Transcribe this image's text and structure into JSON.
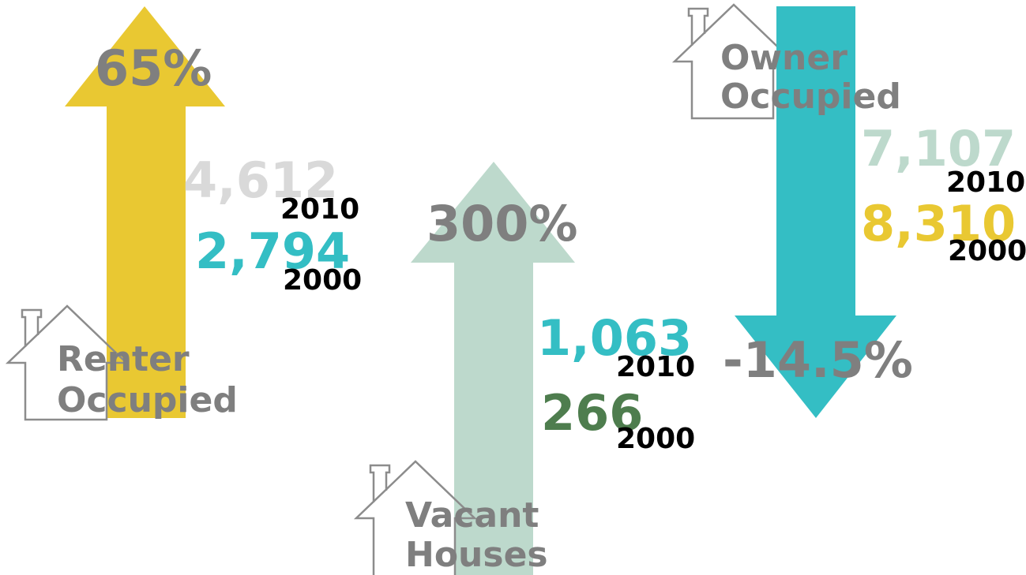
{
  "panels": [
    {
      "label": [
        "Renter",
        "Occupied"
      ],
      "change": "65%",
      "figures": [
        {
          "value": "4,612",
          "year": "2010"
        },
        {
          "value": "2,794",
          "year": "2000"
        }
      ]
    },
    {
      "label": [
        "Vacant",
        "Houses"
      ],
      "change": "300%",
      "figures": [
        {
          "value": "1,063",
          "year": "2010"
        },
        {
          "value": "266",
          "year": "2000"
        }
      ]
    },
    {
      "label": [
        "Owner",
        "Occupied"
      ],
      "change": "-14.5%",
      "figures": [
        {
          "value": "7,107",
          "year": "2010"
        },
        {
          "value": "8,310",
          "year": "2000"
        }
      ]
    }
  ]
}
